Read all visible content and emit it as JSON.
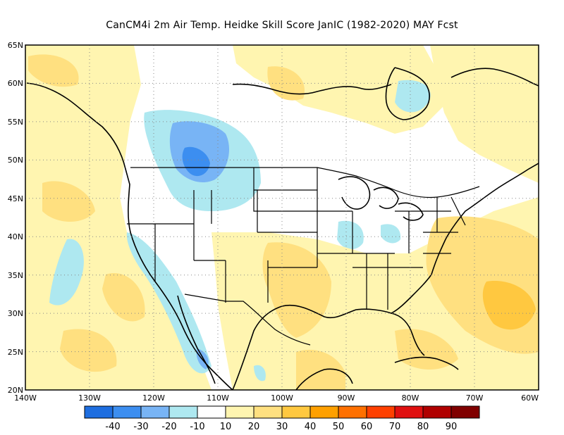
{
  "title": "CanCM4i  2m Air Temp. Heidke Skill Score JanIC (1982-2020) MAY Fcst",
  "lat_labels": [
    "65N",
    "60N",
    "55N",
    "50N",
    "45N",
    "40N",
    "35N",
    "30N",
    "25N",
    "20N"
  ],
  "lon_labels": [
    "140W",
    "130W",
    "120W",
    "110W",
    "100W",
    "90W",
    "80W",
    "70W",
    "60W"
  ],
  "colorbar": {
    "colors": [
      "#1e6ee0",
      "#3c8ef0",
      "#78b4f5",
      "#aee8f0",
      "#ffffff",
      "#fff5b0",
      "#ffe080",
      "#ffc840",
      "#ffa000",
      "#ff7000",
      "#ff4000",
      "#e01010",
      "#b00000",
      "#800000"
    ],
    "labels": [
      "-40",
      "-30",
      "-20",
      "-10",
      "10",
      "20",
      "30",
      "40",
      "50",
      "60",
      "70",
      "80",
      "90"
    ]
  },
  "map_style": {
    "land_outline": "#000000",
    "grid": "dotted",
    "fields": {
      "blue_strong": "#78b4f5",
      "blue_deep": "#3c8ef0",
      "blue_light": "#aee8f0",
      "yellow_light": "#fff5b0",
      "yellow": "#ffe080",
      "orange_light": "#ffc840"
    }
  }
}
